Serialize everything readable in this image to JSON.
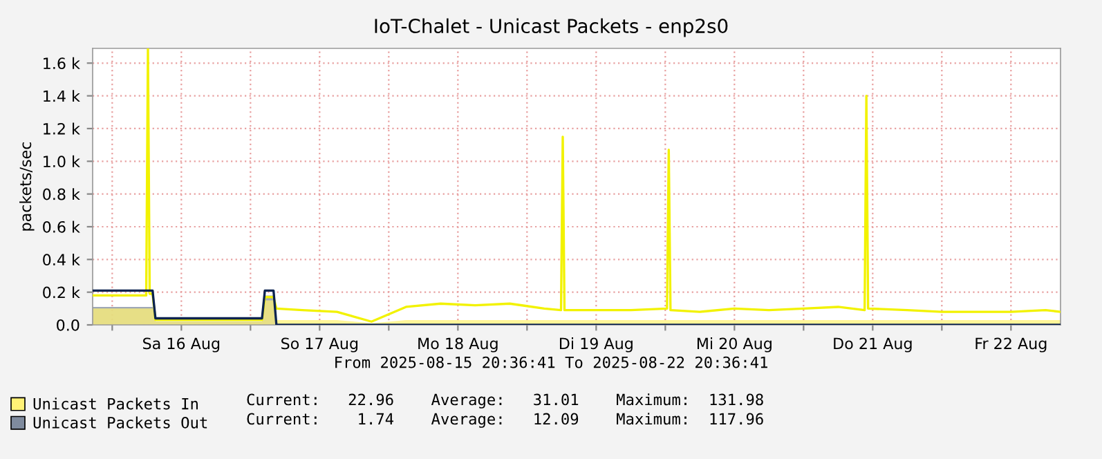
{
  "chart_data": {
    "type": "area",
    "title": "IoT-Chalet - Unicast Packets - enp2s0",
    "ylabel": "packets/sec",
    "x": [
      "2025-08-15T20:36",
      "2025-08-16T00:00",
      "2025-08-16T03:00",
      "2025-08-16T05:54",
      "2025-08-16T06:12",
      "2025-08-16T06:30",
      "2025-08-16T07:00",
      "2025-08-16T07:30",
      "2025-08-16T12:00",
      "2025-08-16T18:00",
      "2025-08-17T00:00",
      "2025-08-17T02:00",
      "2025-08-17T02:30",
      "2025-08-17T04:00",
      "2025-08-17T04:30",
      "2025-08-17T09:00",
      "2025-08-17T15:00",
      "2025-08-17T21:00",
      "2025-08-18T03:00",
      "2025-08-18T09:00",
      "2025-08-18T15:00",
      "2025-08-18T21:00",
      "2025-08-19T03:00",
      "2025-08-19T05:54",
      "2025-08-19T06:12",
      "2025-08-19T06:30",
      "2025-08-19T12:00",
      "2025-08-19T18:00",
      "2025-08-20T00:18",
      "2025-08-20T00:36",
      "2025-08-20T00:54",
      "2025-08-20T06:00",
      "2025-08-20T12:00",
      "2025-08-20T18:00",
      "2025-08-21T00:00",
      "2025-08-21T06:00",
      "2025-08-21T10:36",
      "2025-08-21T10:54",
      "2025-08-21T11:12",
      "2025-08-21T18:00",
      "2025-08-22T00:00",
      "2025-08-22T06:00",
      "2025-08-22T12:00",
      "2025-08-22T18:00",
      "2025-08-22T20:36"
    ],
    "series": [
      {
        "color": "#7f8b9e",
        "name": "Unicast Packets Out",
        "values": [
          110,
          110,
          110,
          110,
          110,
          110,
          110,
          20,
          20,
          20,
          20,
          20,
          180,
          180,
          0,
          0,
          0,
          0,
          0,
          0,
          0,
          0,
          0,
          0,
          0,
          0,
          0,
          0,
          0,
          0,
          0,
          0,
          0,
          0,
          0,
          0,
          0,
          0,
          0,
          0,
          0,
          0,
          0,
          0,
          0
        ]
      },
      {
        "color": "#fff176",
        "name": "Unicast Packets In",
        "values": [
          100,
          100,
          100,
          100,
          100,
          100,
          100,
          20,
          20,
          20,
          20,
          20,
          150,
          150,
          30,
          30,
          30,
          10,
          30,
          30,
          30,
          30,
          30,
          30,
          30,
          30,
          30,
          30,
          30,
          30,
          30,
          30,
          30,
          30,
          30,
          30,
          30,
          30,
          30,
          30,
          30,
          30,
          30,
          30,
          30
        ]
      },
      {
        "type": "line",
        "color": "#f2f200",
        "values": [
          180,
          180,
          180,
          180,
          1690,
          190,
          190,
          30,
          30,
          30,
          30,
          30,
          170,
          170,
          100,
          90,
          80,
          20,
          110,
          130,
          120,
          130,
          100,
          90,
          1150,
          90,
          90,
          90,
          100,
          1070,
          90,
          80,
          100,
          90,
          100,
          110,
          90,
          1400,
          100,
          90,
          80,
          80,
          80,
          90,
          80
        ]
      },
      {
        "type": "line",
        "color": "#0b2350",
        "values": [
          210,
          210,
          210,
          210,
          210,
          210,
          210,
          40,
          40,
          40,
          40,
          40,
          210,
          210,
          0,
          0,
          0,
          0,
          0,
          0,
          0,
          0,
          0,
          0,
          0,
          0,
          0,
          0,
          0,
          0,
          0,
          0,
          0,
          0,
          0,
          0,
          0,
          0,
          0,
          0,
          0,
          0,
          0,
          0,
          0
        ]
      }
    ],
    "xlim": [
      "2025-08-15T20:36",
      "2025-08-22T20:36"
    ],
    "xticks": [
      {
        "value": "2025-08-16T00:00",
        "label": null
      },
      {
        "value": "2025-08-16T12:00",
        "label": "Sa 16 Aug"
      },
      {
        "value": "2025-08-17T00:00",
        "label": null
      },
      {
        "value": "2025-08-17T12:00",
        "label": "So 17 Aug"
      },
      {
        "value": "2025-08-18T00:00",
        "label": null
      },
      {
        "value": "2025-08-18T12:00",
        "label": "Mo 18 Aug"
      },
      {
        "value": "2025-08-19T00:00",
        "label": null
      },
      {
        "value": "2025-08-19T12:00",
        "label": "Di 19 Aug"
      },
      {
        "value": "2025-08-20T00:00",
        "label": null
      },
      {
        "value": "2025-08-20T12:00",
        "label": "Mi 20 Aug"
      },
      {
        "value": "2025-08-21T00:00",
        "label": null
      },
      {
        "value": "2025-08-21T12:00",
        "label": "Do 21 Aug"
      },
      {
        "value": "2025-08-22T00:00",
        "label": null
      },
      {
        "value": "2025-08-22T12:00",
        "label": "Fr 22 Aug"
      }
    ],
    "ylim": [
      0,
      1690
    ],
    "yticks": [
      {
        "value": 0,
        "label": "0.0"
      },
      {
        "value": 200,
        "label": "0.2 k"
      },
      {
        "value": 400,
        "label": "0.4 k"
      },
      {
        "value": 600,
        "label": "0.6 k"
      },
      {
        "value": 800,
        "label": "0.8 k"
      },
      {
        "value": 1000,
        "label": "1.0 k"
      },
      {
        "value": 1200,
        "label": "1.2 k"
      },
      {
        "value": 1400,
        "label": "1.4 k"
      },
      {
        "value": 1600,
        "label": "1.6 k"
      }
    ],
    "grid": true,
    "legend": "bottom left",
    "annotations": [
      "From 2025-08-15 20:36:41 To 2025-08-22 20:36:41",
      "Current:    1.74    Average:   12.09    Maximum:  117.96",
      "Current:   22.96    Average:   31.01    Maximum:  131.98"
    ]
  }
}
